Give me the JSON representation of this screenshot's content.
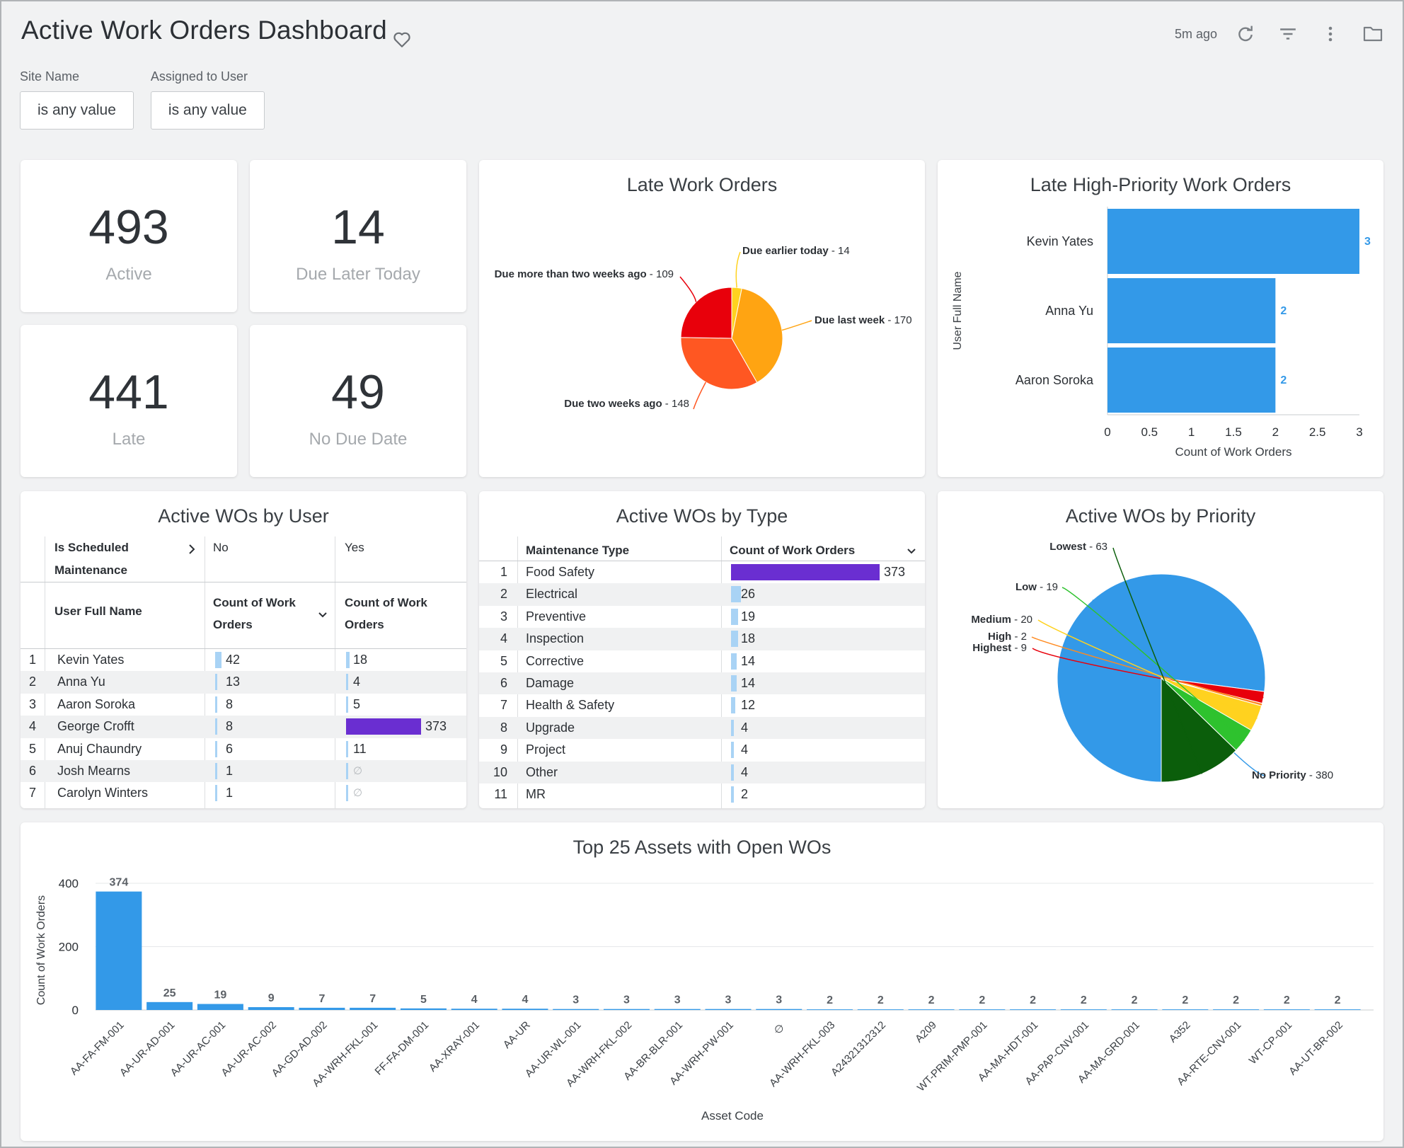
{
  "header": {
    "title": "Active Work Orders Dashboard",
    "last_updated": "5m ago"
  },
  "filters": [
    {
      "label": "Site Name",
      "value": "is any value"
    },
    {
      "label": "Assigned to User",
      "value": "is any value"
    }
  ],
  "kpis": {
    "active": {
      "value": "493",
      "label": "Active"
    },
    "due_later_today": {
      "value": "14",
      "label": "Due Later Today"
    },
    "late": {
      "value": "441",
      "label": "Late"
    },
    "no_due_date": {
      "value": "49",
      "label": "No Due Date"
    }
  },
  "late_work_orders": {
    "title": "Late Work Orders",
    "chart_data": {
      "type": "pie",
      "slices": [
        {
          "label": "Due earlier today",
          "value": 14,
          "color": "#ffd21f"
        },
        {
          "label": "Due last week",
          "value": 170,
          "color": "#ffa412"
        },
        {
          "label": "Due two weeks ago",
          "value": 148,
          "color": "#ff5722"
        },
        {
          "label": "Due more than two weeks ago",
          "value": 109,
          "color": "#e8000b"
        }
      ]
    }
  },
  "late_high_priority": {
    "title": "Late High-Priority Work Orders",
    "chart_data": {
      "type": "bar",
      "orientation": "horizontal",
      "categories": [
        "Kevin Yates",
        "Anna Yu",
        "Aaron Soroka"
      ],
      "values": [
        3,
        2,
        2
      ],
      "xlabel": "Count of Work Orders",
      "ylabel": "User Full Name",
      "xlim": [
        0,
        3
      ],
      "xticks": [
        "0",
        "0.5",
        "1",
        "1.5",
        "2",
        "2.5",
        "3"
      ],
      "color": "#3399e8"
    }
  },
  "wos_by_user": {
    "title": "Active WOs by User",
    "pivot_label": "Is Scheduled Maintenance",
    "pivot_values": [
      "No",
      "Yes"
    ],
    "row_header": "User Full Name",
    "measure_header": "Count of Work Orders",
    "rows": [
      {
        "num": "1",
        "name": "Kevin Yates",
        "no": 42,
        "yes": 18
      },
      {
        "num": "2",
        "name": "Anna Yu",
        "no": 13,
        "yes": 4
      },
      {
        "num": "3",
        "name": "Aaron Soroka",
        "no": 8,
        "yes": 5
      },
      {
        "num": "4",
        "name": "George Crofft",
        "no": 8,
        "yes": 373
      },
      {
        "num": "5",
        "name": "Anuj Chaundry",
        "no": 6,
        "yes": 11
      },
      {
        "num": "6",
        "name": "Josh Mearns",
        "no": 1,
        "yes": null
      },
      {
        "num": "7",
        "name": "Carolyn Winters",
        "no": 1,
        "yes": null
      }
    ],
    "null_symbol": "∅"
  },
  "wos_by_type": {
    "title": "Active WOs by Type",
    "col1": "Maintenance Type",
    "col2": "Count of Work Orders",
    "rows": [
      {
        "num": "1",
        "type": "Food Safety",
        "count": 373
      },
      {
        "num": "2",
        "type": "Electrical",
        "count": 26
      },
      {
        "num": "3",
        "type": "Preventive",
        "count": 19
      },
      {
        "num": "4",
        "type": "Inspection",
        "count": 18
      },
      {
        "num": "5",
        "type": "Corrective",
        "count": 14
      },
      {
        "num": "6",
        "type": "Damage",
        "count": 14
      },
      {
        "num": "7",
        "type": "Health & Safety",
        "count": 12
      },
      {
        "num": "8",
        "type": "Upgrade",
        "count": 4
      },
      {
        "num": "9",
        "type": "Project",
        "count": 4
      },
      {
        "num": "10",
        "type": "Other",
        "count": 4
      },
      {
        "num": "11",
        "type": "MR",
        "count": 2
      }
    ]
  },
  "wos_by_priority": {
    "title": "Active WOs by Priority",
    "chart_data": {
      "type": "pie",
      "slices": [
        {
          "label": "No Priority",
          "value": 380,
          "color": "#3399e8"
        },
        {
          "label": "Highest",
          "value": 9,
          "color": "#e8000b"
        },
        {
          "label": "High",
          "value": 2,
          "color": "#ff8a1f"
        },
        {
          "label": "Medium",
          "value": 20,
          "color": "#ffd21f"
        },
        {
          "label": "Low",
          "value": 19,
          "color": "#2ec22e"
        },
        {
          "label": "Lowest",
          "value": 63,
          "color": "#0b5e0b"
        }
      ]
    }
  },
  "top_assets": {
    "title": "Top 25 Assets with Open WOs",
    "chart_data": {
      "type": "bar",
      "categories": [
        "AA-FA-FM-001",
        "AA-UR-AD-001",
        "AA-UR-AC-001",
        "AA-UR-AC-002",
        "AA-GD-AD-002",
        "AA-WRH-FKL-001",
        "FF-FA-DM-001",
        "AA-XRAY-001",
        "AA-UR",
        "AA-UR-WL-001",
        "AA-WRH-FKL-002",
        "AA-BR-BLR-001",
        "AA-WRH-PW-001",
        "∅",
        "AA-WRH-FKL-003",
        "A24321312312",
        "A209",
        "WT-PRIM-PMP-001",
        "AA-MA-HDT-001",
        "AA-PAP-CNV-001",
        "AA-MA-GRD-001",
        "A352",
        "AA-RTE-CNV-001",
        "WT-CP-001",
        "AA-UT-BR-002"
      ],
      "values": [
        374,
        25,
        19,
        9,
        7,
        7,
        5,
        4,
        4,
        3,
        3,
        3,
        3,
        3,
        2,
        2,
        2,
        2,
        2,
        2,
        2,
        2,
        2,
        2,
        2
      ],
      "xlabel": "Asset Code",
      "ylabel": "Count of Work Orders",
      "ylim": [
        0,
        400
      ],
      "yticks": [
        "0",
        "200",
        "400"
      ],
      "color": "#3399e8"
    }
  }
}
